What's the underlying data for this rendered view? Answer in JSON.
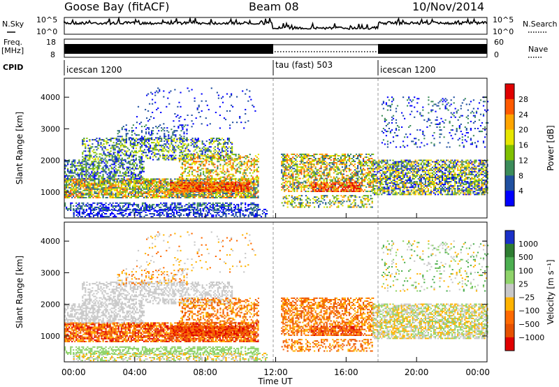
{
  "header": {
    "station": "Goose Bay (fitACF)",
    "beam": "Beam 08",
    "date": "10/Nov/2014"
  },
  "left_labels": {
    "nsky": "N.Sky",
    "freq": "Freq.",
    "freq_unit": "[MHz]",
    "cpid": "CPID"
  },
  "right_labels": {
    "nsearch": "N.Search",
    "nave": "Nave"
  },
  "noise_axis": {
    "ticks": [
      "10^5",
      "10^0"
    ]
  },
  "freq_axis": {
    "left_ticks": [
      "18",
      "8"
    ],
    "right_ticks": [
      "60",
      "0"
    ]
  },
  "cpid_segments": [
    "icescan 1200",
    "tau (fast) 503",
    "icescan 1200"
  ],
  "chart_data": [
    {
      "type": "heatmap",
      "name": "power-panel",
      "ylabel": "Slant Range [km]",
      "yticks": [
        "4000",
        "3000",
        "2000",
        "1000"
      ],
      "ylim": [
        180,
        4600
      ],
      "xlim": [
        0,
        24
      ],
      "colorbar": {
        "label": "Power [dB]",
        "ticks": [
          "28",
          "24",
          "20",
          "16",
          "12",
          "8",
          "4"
        ],
        "colors": [
          "#e00000",
          "#ff5a00",
          "#ffa500",
          "#e6e600",
          "#80c000",
          "#3c8c5a",
          "#2050a0",
          "#0000ff"
        ]
      }
    },
    {
      "type": "heatmap",
      "name": "velocity-panel",
      "ylabel": "Slant Range [km]",
      "yticks": [
        "4000",
        "3000",
        "2000",
        "1000"
      ],
      "ylim": [
        180,
        4600
      ],
      "xlim": [
        0,
        24
      ],
      "xlabel": "Time UT",
      "xticks": [
        "00:00",
        "04:00",
        "08:00",
        "12:00",
        "16:00",
        "20:00",
        "00:00"
      ],
      "colorbar": {
        "label": "Velocity [m s⁻¹]",
        "ticks": [
          "1000",
          "500",
          "100",
          "25",
          "−25",
          "−100",
          "−500",
          "−1000"
        ],
        "colors": [
          "#1a30c8",
          "#2e7d32",
          "#4caf50",
          "#8fd36a",
          "#c8c8c8",
          "#ffb300",
          "#ff6a00",
          "#e65100",
          "#e00000"
        ]
      }
    }
  ]
}
